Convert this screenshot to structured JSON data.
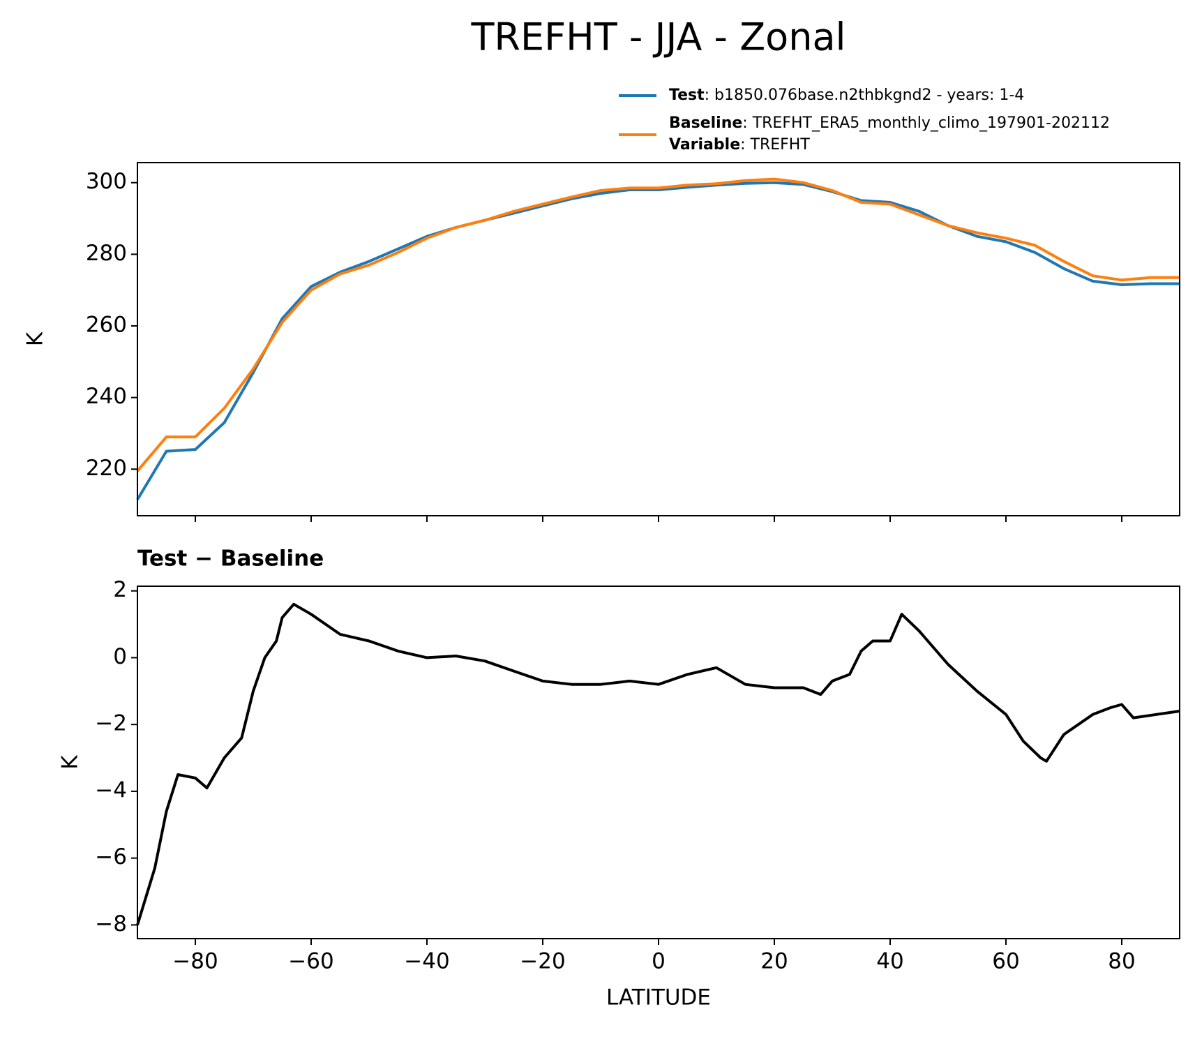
{
  "title": "TREFHT - JJA - Zonal",
  "chart_data": [
    {
      "type": "line",
      "ylabel": "K",
      "x": [
        -90,
        -85,
        -80,
        -75,
        -70,
        -65,
        -60,
        -55,
        -50,
        -45,
        -40,
        -35,
        -30,
        -25,
        -20,
        -15,
        -10,
        -5,
        0,
        5,
        10,
        15,
        20,
        25,
        30,
        35,
        40,
        45,
        50,
        55,
        60,
        65,
        70,
        75,
        80,
        85,
        90
      ],
      "series": [
        {
          "name": "Test",
          "label": ": b1850.076base.n2thbkgnd2 - years: 1-4",
          "color": "#1f77b4",
          "values": [
            211.5,
            225,
            225.5,
            233,
            247,
            262,
            271,
            275,
            278,
            281.5,
            285,
            287.5,
            289.5,
            291.5,
            293.5,
            295.5,
            297,
            298,
            298,
            298.7,
            299.3,
            299.8,
            300,
            299.5,
            297.5,
            295,
            294.5,
            292,
            288,
            285,
            283.5,
            280.5,
            276,
            272.5,
            271.5,
            271.8,
            271.8
          ]
        },
        {
          "name": "Baseline",
          "label": ": TREFHT_ERA5_monthly_climo_197901-202112",
          "color": "#ff7f0e",
          "values": [
            219.5,
            229,
            229,
            237,
            248,
            261,
            270,
            274.5,
            277,
            280.5,
            284.5,
            287.5,
            289.5,
            292,
            294,
            296,
            297.8,
            298.5,
            298.5,
            299.3,
            299.7,
            300.6,
            301,
            300,
            297.8,
            294.5,
            294,
            291,
            288,
            286,
            284.5,
            282.5,
            278,
            274,
            272.8,
            273.5,
            273.5
          ]
        }
      ],
      "variable": {
        "name": "Variable",
        "label": ": TREFHT"
      },
      "xlim": [
        -90,
        90
      ],
      "xticks": [
        -80,
        -60,
        -40,
        -20,
        0,
        20,
        40,
        60,
        80
      ],
      "ylim": [
        207,
        305.6
      ],
      "yticks": [
        220,
        240,
        260,
        280,
        300
      ]
    },
    {
      "type": "line",
      "title": "Test − Baseline",
      "xlabel": "LATITUDE",
      "ylabel": "K",
      "x": [
        -90,
        -87,
        -85,
        -83,
        -80,
        -78,
        -75,
        -72,
        -70,
        -68,
        -66,
        -65,
        -63,
        -60,
        -55,
        -50,
        -45,
        -40,
        -35,
        -30,
        -25,
        -20,
        -15,
        -10,
        -5,
        0,
        5,
        10,
        15,
        20,
        25,
        28,
        30,
        33,
        35,
        37,
        40,
        42,
        45,
        50,
        55,
        60,
        63,
        66,
        67,
        70,
        75,
        78,
        80,
        82,
        90
      ],
      "series": [
        {
          "color": "#000000",
          "values": [
            -8,
            -6.3,
            -4.6,
            -3.5,
            -3.6,
            -3.9,
            -3,
            -2.4,
            -1,
            0,
            0.5,
            1.2,
            1.6,
            1.3,
            0.7,
            0.5,
            0.2,
            0,
            0.05,
            -0.1,
            -0.4,
            -0.7,
            -0.8,
            -0.8,
            -0.7,
            -0.8,
            -0.5,
            -0.3,
            -0.8,
            -0.9,
            -0.9,
            -1.1,
            -0.7,
            -0.5,
            0.2,
            0.5,
            0.5,
            1.3,
            0.8,
            -0.2,
            -1,
            -1.7,
            -2.5,
            -3,
            -3.1,
            -2.3,
            -1.7,
            -1.5,
            -1.4,
            -1.8,
            -1.6
          ]
        }
      ],
      "xlim": [
        -90,
        90
      ],
      "xticks": [
        {
          "value": -80,
          "label": "−80"
        },
        {
          "value": -60,
          "label": "−60"
        },
        {
          "value": -40,
          "label": "−40"
        },
        {
          "value": -20,
          "label": "−20"
        },
        0,
        20,
        40,
        60,
        80
      ],
      "ylim": [
        -8.41,
        2.14
      ],
      "yticks": [
        {
          "value": -8,
          "label": "−8"
        },
        {
          "value": -6,
          "label": "−6"
        },
        {
          "value": -4,
          "label": "−4"
        },
        {
          "value": -2,
          "label": "−2"
        },
        0,
        2
      ]
    }
  ]
}
